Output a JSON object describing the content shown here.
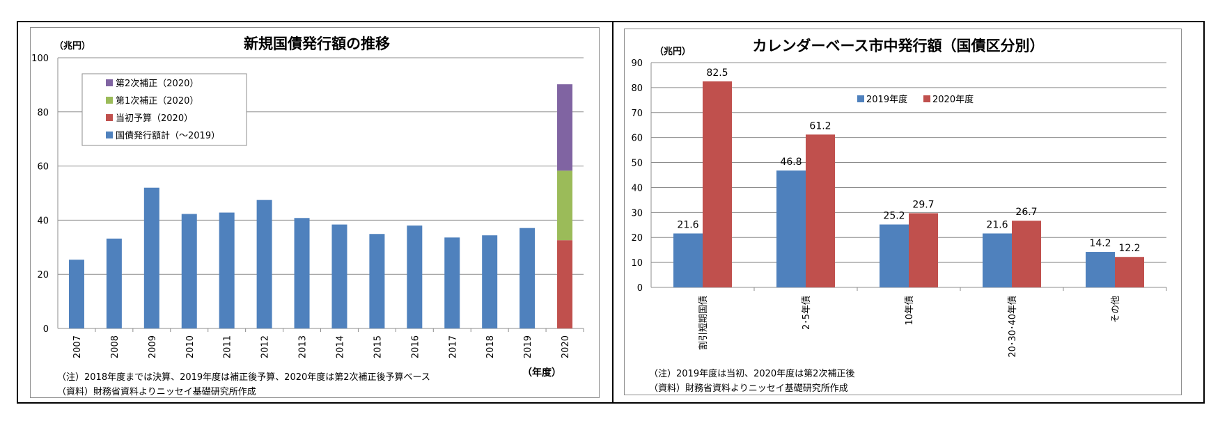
{
  "chart_data": [
    {
      "type": "bar",
      "title": "新規国債発行額の推移",
      "ylabel": "（兆円）",
      "xlabel": "（年度）",
      "ylim": [
        0,
        100
      ],
      "yticks": [
        "0",
        "20",
        "40",
        "60",
        "80",
        "100"
      ],
      "grid": true,
      "legend_position": "top-left",
      "categories": [
        "2007",
        "2008",
        "2009",
        "2010",
        "2011",
        "2012",
        "2013",
        "2014",
        "2015",
        "2016",
        "2017",
        "2018",
        "2019",
        "2020"
      ],
      "stacked": true,
      "series": [
        {
          "name": "国債発行額計（～2019）",
          "color": "#4f81bd",
          "values": [
            25.4,
            33.2,
            52.0,
            42.3,
            42.8,
            47.5,
            40.8,
            38.4,
            34.9,
            38.0,
            33.6,
            34.4,
            37.1,
            0
          ]
        },
        {
          "name": "当初予算（2020）",
          "color": "#c0504d",
          "values": [
            0,
            0,
            0,
            0,
            0,
            0,
            0,
            0,
            0,
            0,
            0,
            0,
            0,
            32.6
          ]
        },
        {
          "name": "第1次補正（2020）",
          "color": "#9bbb59",
          "values": [
            0,
            0,
            0,
            0,
            0,
            0,
            0,
            0,
            0,
            0,
            0,
            0,
            0,
            25.7
          ]
        },
        {
          "name": "第2次補正（2020）",
          "color": "#8064a2",
          "values": [
            0,
            0,
            0,
            0,
            0,
            0,
            0,
            0,
            0,
            0,
            0,
            0,
            0,
            31.9
          ]
        }
      ],
      "notes": [
        "（注）2018年度までは決算、2019年度は補正後予算、2020年度は第2次補正後予算ベース",
        "（資料）財務省資料よりニッセイ基礎研究所作成"
      ]
    },
    {
      "type": "bar",
      "title": "カレンダーベース市中発行額（国債区分別）",
      "ylabel": "（兆円）",
      "ylim": [
        0,
        90
      ],
      "yticks": [
        "0",
        "10",
        "20",
        "30",
        "40",
        "50",
        "60",
        "70",
        "80",
        "90"
      ],
      "grid": true,
      "legend_position": "top-center",
      "categories": [
        "割引短期国債",
        "2･5年債",
        "10年債",
        "20･30･40年債",
        "その他"
      ],
      "series": [
        {
          "name": "2019年度",
          "color": "#4f81bd",
          "values": [
            21.6,
            46.8,
            25.2,
            21.6,
            14.2
          ],
          "labels": [
            "21.6",
            "46.8",
            "25.2",
            "21.6",
            "14.2"
          ]
        },
        {
          "name": "2020年度",
          "color": "#c0504d",
          "values": [
            82.5,
            61.2,
            29.7,
            26.7,
            12.2
          ],
          "labels": [
            "82.5",
            "61.2",
            "29.7",
            "26.7",
            "12.2"
          ]
        }
      ],
      "notes": [
        "（注）2019年度は当初、2020年度は第2次補正後",
        "（資料）財務省資料よりニッセイ基礎研究所作成"
      ]
    }
  ]
}
